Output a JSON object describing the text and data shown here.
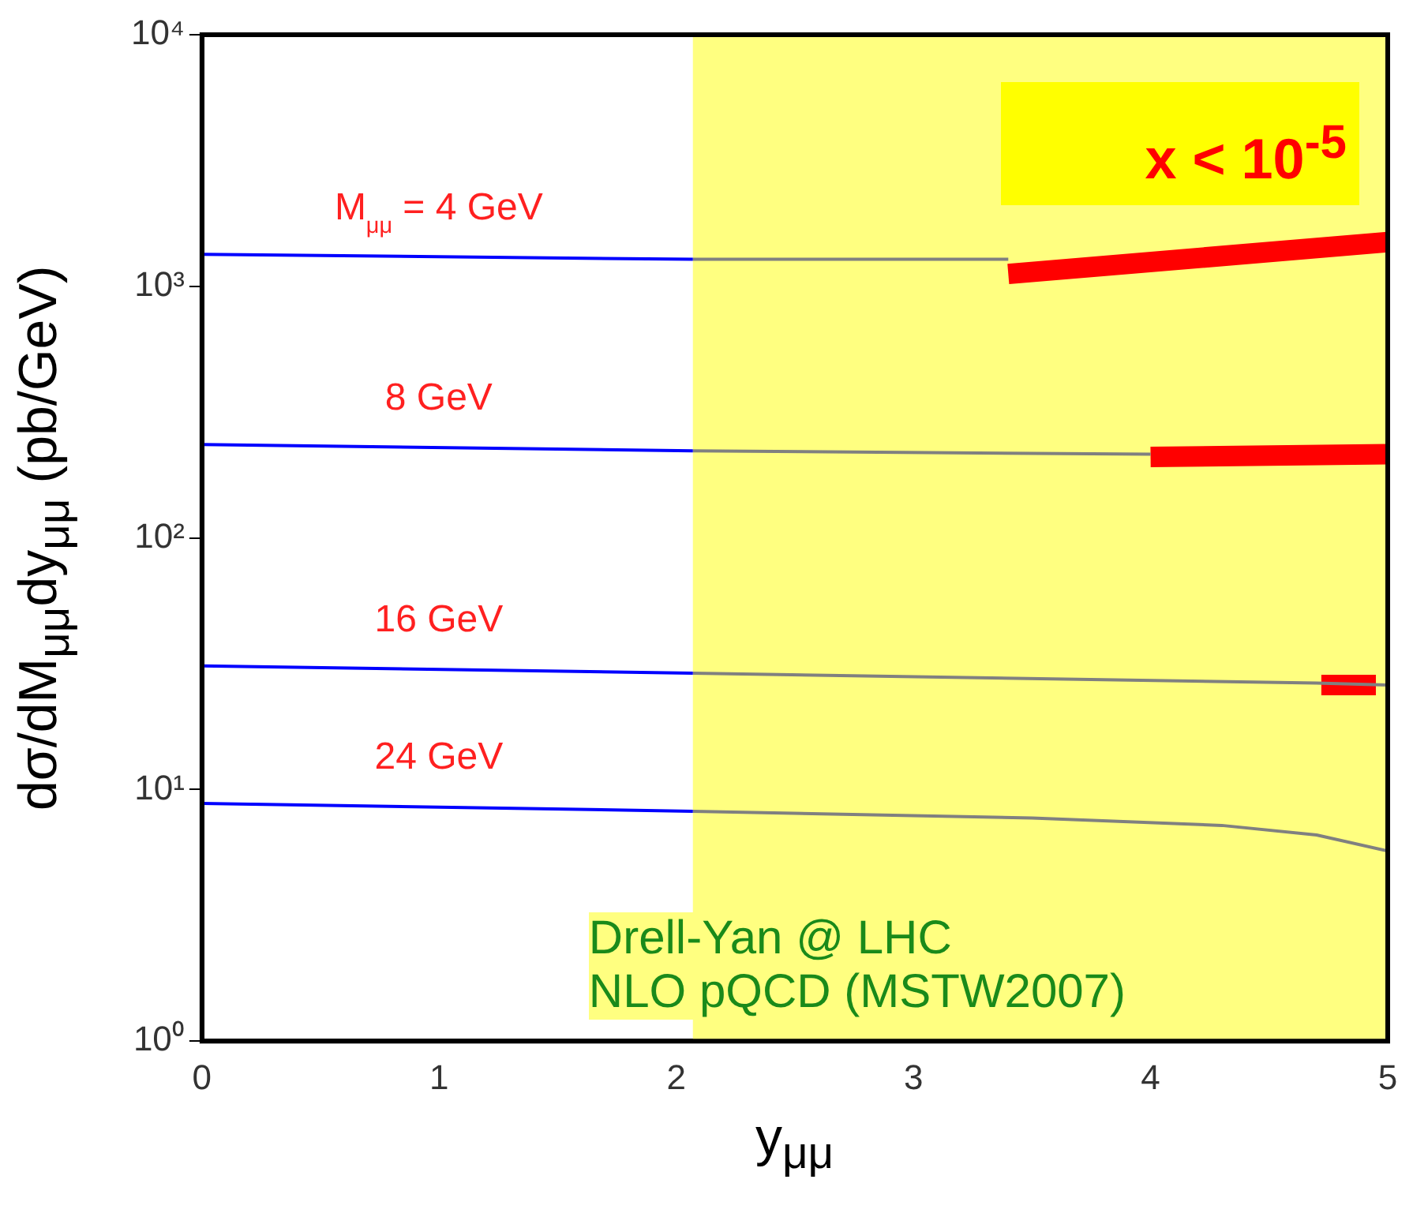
{
  "chart_data": {
    "type": "line",
    "xlabel": "y$_{μμ}$",
    "ylabel": "dσ/dM$_{μμ}$dy$_{μμ}$   (pb/GeV)",
    "xlim": [
      0,
      5
    ],
    "xticks": [
      0,
      1,
      2,
      3,
      4,
      5
    ],
    "ylim": [
      1,
      10000
    ],
    "log": true,
    "yticks": [
      {
        "value": 1,
        "label": "10⁰"
      },
      {
        "value": 10,
        "label": "10¹"
      },
      {
        "value": 100,
        "label": "10²"
      },
      {
        "value": 1000,
        "label": "10³"
      },
      {
        "value": 10000,
        "label": "10⁴"
      }
    ],
    "series": [
      {
        "name": "M$_{μμ}$ = 4 GeV",
        "color": "#0000ff",
        "x": [
          0,
          2.07
        ],
        "values": [
          1340,
          1280
        ]
      },
      {
        "color": "#808080",
        "x": [
          2.07,
          3.4
        ],
        "values": [
          1280,
          1280
        ]
      },
      {
        "color": "#ff0000",
        "x": [
          3.4,
          5
        ],
        "values": [
          1120,
          1500
        ]
      },
      {
        "name": "8 GeV",
        "color": "#0000ff",
        "x": [
          0,
          2.07
        ],
        "values": [
          235,
          222
        ]
      },
      {
        "color": "#808080",
        "x": [
          2.07,
          4
        ],
        "values": [
          222,
          215
        ]
      },
      {
        "color": "#ff0000",
        "x": [
          4,
          5
        ],
        "values": [
          210,
          215
        ]
      },
      {
        "name": "16 GeV",
        "color": "#0000ff",
        "x": [
          0,
          2.07
        ],
        "values": [
          31,
          29
        ]
      },
      {
        "color": "#808080",
        "x": [
          2.07,
          4.7,
          5
        ],
        "values": [
          29,
          26.5,
          26
        ]
      },
      {
        "color": "#ff0000",
        "x": [
          4.72,
          4.95
        ],
        "values": [
          26,
          26
        ]
      },
      {
        "name": "24 GeV",
        "color": "#0000ff",
        "x": [
          0,
          2.07
        ],
        "values": [
          8.8,
          8.2
        ]
      },
      {
        "color": "#808080",
        "x": [
          2.07,
          3.5,
          4.3,
          4.7,
          5
        ],
        "values": [
          8.2,
          7.7,
          7.2,
          6.6,
          5.7
        ]
      }
    ],
    "bands": [
      {
        "axis": "x",
        "from": 2.07,
        "to": 5,
        "label": "x < 10$^{-5}$",
        "color": "#ffff80"
      }
    ],
    "annotations": [
      "Drell-Yan @ LHC",
      "NLO pQCD (MSTW2007)"
    ],
    "marker": "none",
    "line_style": "solid",
    "legend": false
  }
}
